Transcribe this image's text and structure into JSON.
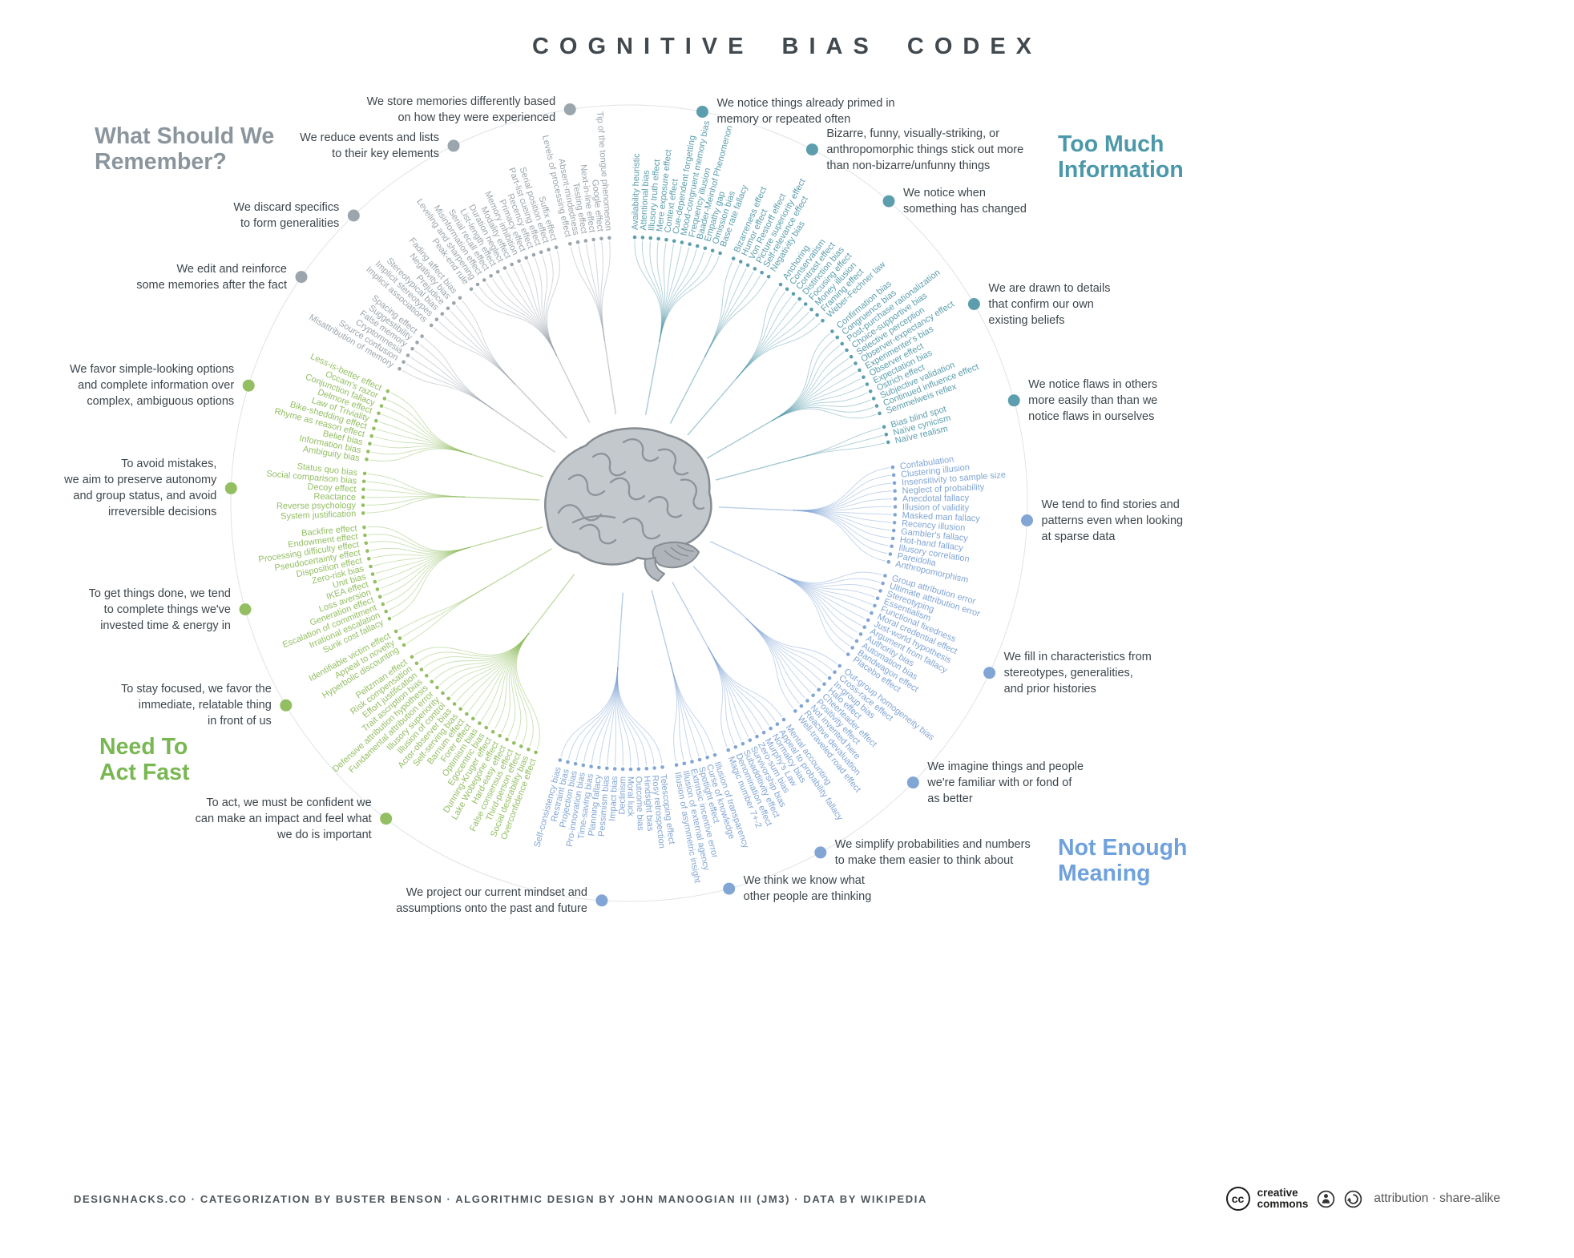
{
  "title": "COGNITIVE BIAS CODEX",
  "footer": {
    "credits": "DESIGNHACKS.CO  ·  CATEGORIZATION BY BUSTER BENSON  ·  ALGORITHMIC DESIGN BY JOHN MANOOGIAN III (JM3)  ·  DATA BY WIKIPEDIA",
    "cc_logo": "cc",
    "cc_name": "creative\ncommons",
    "license": "attribution · share-alike"
  },
  "diagram": {
    "center_icon": "brain-illustration",
    "quadrants": [
      {
        "id": "too-much-information",
        "label": "Too Much\nInformation",
        "header_color": "#4a98aa",
        "label_color": "#5c9ead",
        "groups": [
          {
            "description": "We notice things already primed in\nmemory or repeated often",
            "biases": [
              "Availability heuristic",
              "Attentional bias",
              "Illusory truth effect",
              "Mere exposure effect",
              "Context effect",
              "Cue-dependent forgetting",
              "Mood-congruent memory bias",
              "Frequency illusion",
              "Baader-Meinhof Phenomenon",
              "Empathy gap",
              "Omission bias",
              "Base rate fallacy"
            ]
          },
          {
            "description": "Bizarre, funny, visually-striking, or\nanthropomorphic things stick out more\nthan non-bizarre/unfunny things",
            "biases": [
              "Bizarreness effect",
              "Humor effect",
              "Von Restorff effect",
              "Picture superiority effect",
              "Self-relevance effect",
              "Negativity bias"
            ]
          },
          {
            "description": "We notice when\nsomething has changed",
            "biases": [
              "Anchoring",
              "Conservatism",
              "Contrast effect",
              "Distinction bias",
              "Focusing effect",
              "Money illusion",
              "Framing effect",
              "Weber-Fechner law"
            ]
          },
          {
            "description": "We are drawn to details\nthat confirm our own\nexisting beliefs",
            "biases": [
              "Confirmation bias",
              "Congruence bias",
              "Post-purchase rationalization",
              "Choice-supportive bias",
              "Selective perception",
              "Observer-expectancy effect",
              "Experimenter's bias",
              "Observer effect",
              "Expectation bias",
              "Ostrich effect",
              "Subjective validation",
              "Continued influence effect",
              "Semmelweis reflex"
            ]
          },
          {
            "description": "We notice flaws in others\nmore easily than than we\nnotice flaws in ourselves",
            "biases": [
              "Bias blind spot",
              "Naïve cynicism",
              "Naïve realism"
            ]
          }
        ]
      },
      {
        "id": "not-enough-meaning",
        "label": "Not Enough\nMeaning",
        "header_color": "#6fa1dc",
        "label_color": "#81a5d4",
        "groups": [
          {
            "description": "We tend to find stories and\npatterns even when looking\nat sparse data",
            "biases": [
              "Confabulation",
              "Clustering illusion",
              "Insensitivity to sample size",
              "Neglect of probability",
              "Anecdotal fallacy",
              "Illusion of validity",
              "Masked man fallacy",
              "Recency illusion",
              "Gambler's fallacy",
              "Hot-hand fallacy",
              "Illusory correlation",
              "Pareidolia",
              "Anthropomorphism"
            ]
          },
          {
            "description": "We fill in characteristics from\nstereotypes, generalities,\nand prior histories",
            "biases": [
              "Group attribution error",
              "Ultimate attribution error",
              "Stereotyping",
              "Essentialism",
              "Functional fixedness",
              "Moral credential effect",
              "Just-world hypothesis",
              "Argument from fallacy",
              "Authority bias",
              "Automation bias",
              "Bandwagon effect",
              "Placebo effect"
            ]
          },
          {
            "description": "We imagine things and people\nwe're familiar with or fond of\nas better",
            "biases": [
              "Out-group homogeneity bias",
              "Cross-race effect",
              "In-group bias",
              "Halo effect",
              "Cheerleader effect",
              "Positivity effect",
              "Not invented here",
              "Reactive devaluation",
              "Well-traveled road effect"
            ]
          },
          {
            "description": "We simplify probabilities and numbers\nto make them easier to think about",
            "biases": [
              "Mental accounting",
              "Appeal to probability fallacy",
              "Normalcy bias",
              "Murphy's Law",
              "Zero-sum bias",
              "Survivorship bias",
              "Subadditivity effect",
              "Denomination effect",
              "Magic number 7+-2"
            ]
          },
          {
            "description": "We think we know what\nother people are thinking",
            "biases": [
              "Illusion of transparency",
              "Curse of knowledge",
              "Spotlight effect",
              "Extrinsic incentive error",
              "Illusion of external agency",
              "Illusion of asymmetric insight"
            ]
          },
          {
            "description": "We project our current mindset and\nassumptions onto the past and future",
            "biases": [
              "Telescoping effect",
              "Rosy retrospection",
              "Hindsight bias",
              "Outcome bias",
              "Moral luck",
              "Declinism",
              "Impact bias",
              "Pessimism bias",
              "Planning fallacy",
              "Time-saving bias",
              "Pro-innovation bias",
              "Projection bias",
              "Restraint bias",
              "Self-consistency bias"
            ]
          }
        ]
      },
      {
        "id": "need-to-act-fast",
        "label": "Need To\nAct Fast",
        "header_color": "#79b752",
        "label_color": "#93be62",
        "groups": [
          {
            "description": "To act, we must be confident we\ncan make an impact and feel what\nwe do is important",
            "biases": [
              "Overconfidence effect",
              "Social desirability bias",
              "Third-person effect",
              "False consensus effect",
              "Hard-easy effect",
              "Lake Wobegone effect",
              "Dunning-Kruger effect",
              "Egocentric bias",
              "Optimism bias",
              "Forer effect",
              "Barnum effect",
              "Self-serving bias",
              "Actor-observer bias",
              "Illusion of control",
              "Illusory superiority",
              "Fundamental attribution error",
              "Defensive attribution hypothesis",
              "Trait ascription bias",
              "Effort justification",
              "Risk compensation",
              "Peltzman effect"
            ]
          },
          {
            "description": "To stay focused, we favor the\nimmediate, relatable thing\nin front of us",
            "biases": [
              "Hyperbolic discounting",
              "Appeal to novelty",
              "Identifiable victim effect"
            ]
          },
          {
            "description": "To get things done, we tend\nto complete things we've\ninvested time & energy in",
            "biases": [
              "Sunk cost fallacy",
              "Irrational escalation",
              "Escalation of commitment",
              "Generation effect",
              "Loss aversion",
              "IKEA effect",
              "Unit bias",
              "Zero-risk bias",
              "Disposition effect",
              "Pseudocertainty effect",
              "Processing difficulty effect",
              "Endowment effect",
              "Backfire effect"
            ]
          },
          {
            "description": "To avoid mistakes,\nwe aim to preserve autonomy\nand group status, and avoid\nirreversible decisions",
            "biases": [
              "System justification",
              "Reverse psychology",
              "Reactance",
              "Decoy effect",
              "Social comparison bias",
              "Status quo bias"
            ]
          },
          {
            "description": "We favor simple-looking options\nand complete information over\ncomplex, ambiguous options",
            "biases": [
              "Ambiguity bias",
              "Information bias",
              "Belief bias",
              "Rhyme as reason effect",
              "Bike-shedding effect",
              "Law of Triviality",
              "Delmore effect",
              "Conjunction fallacy",
              "Occam's razor",
              "Less-is-better effect"
            ]
          }
        ]
      },
      {
        "id": "what-should-we-remember",
        "label": "What Should We\nRemember?",
        "header_color": "#8b959d",
        "label_color": "#9ba5ac",
        "groups": [
          {
            "description": "We edit and reinforce\nsome memories after the fact",
            "biases": [
              "Misattribution of memory",
              "Source confusion",
              "Cryptomnesia",
              "False memory",
              "Suggestibility",
              "Spacing effect"
            ]
          },
          {
            "description": "We discard specifics\nto form generalities",
            "biases": [
              "Implicit associations",
              "Implicit stereotypes",
              "Stereotypical bias",
              "Prejudice",
              "Negativity bias",
              "Fading affect bias"
            ]
          },
          {
            "description": "We reduce events and lists\nto their key elements",
            "biases": [
              "Peak-end rule",
              "Leveling and sharpening",
              "Misinformation effect",
              "Serial recall effect",
              "List-length effect",
              "Duration neglect",
              "Modality effect",
              "Memory inhibition",
              "Primacy effect",
              "Recency effect",
              "Part-list cueing effect",
              "Serial position effect",
              "Suffix effect"
            ]
          },
          {
            "description": "We store memories differently based\non how they were experienced",
            "biases": [
              "Levels of processing effect",
              "Absent-mindedness",
              "Testing effect",
              "Next-in-line effect",
              "Google effect",
              "Tip of the tongue phenomenon"
            ]
          }
        ]
      }
    ]
  }
}
